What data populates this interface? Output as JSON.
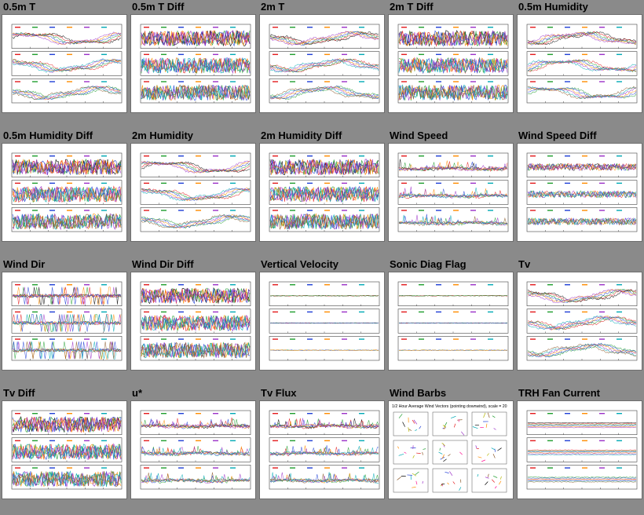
{
  "tiles": [
    {
      "title": "0.5m T",
      "kind": "t"
    },
    {
      "title": "0.5m T Diff",
      "kind": "diff"
    },
    {
      "title": "2m T",
      "kind": "t"
    },
    {
      "title": "2m T Diff",
      "kind": "diff"
    },
    {
      "title": "0.5m Humidity",
      "kind": "smooth"
    },
    {
      "title": "0.5m Humidity Diff",
      "kind": "diff"
    },
    {
      "title": "2m Humidity",
      "kind": "smooth"
    },
    {
      "title": "2m Humidity Diff",
      "kind": "diff"
    },
    {
      "title": "Wind Speed",
      "kind": "spike"
    },
    {
      "title": "Wind Speed Diff",
      "kind": "noise"
    },
    {
      "title": "Wind Dir",
      "kind": "dir"
    },
    {
      "title": "Wind Dir Diff",
      "kind": "diff"
    },
    {
      "title": "Vertical Velocity",
      "kind": "flat"
    },
    {
      "title": "Sonic Diag Flag",
      "kind": "flat"
    },
    {
      "title": "Tv",
      "kind": "smooth"
    },
    {
      "title": "Tv Diff",
      "kind": "diff"
    },
    {
      "title": "u*",
      "kind": "spike"
    },
    {
      "title": "Tv Flux",
      "kind": "spike"
    },
    {
      "title": "Wind Barbs",
      "kind": "barbs",
      "header": "1/2 Hour Average Wind Vectors (pointing downwind), scale = 20"
    },
    {
      "title": "TRH Fan Current",
      "kind": "fan"
    }
  ],
  "colors": {
    "background": "#8a8a8a",
    "series": [
      "#000000",
      "#e31a1c",
      "#1f9e2e",
      "#1f3fd6",
      "#ff8c00",
      "#9b30c8",
      "#00a9b5",
      "#8c5a2b",
      "#b5b500",
      "#ff1493"
    ]
  }
}
